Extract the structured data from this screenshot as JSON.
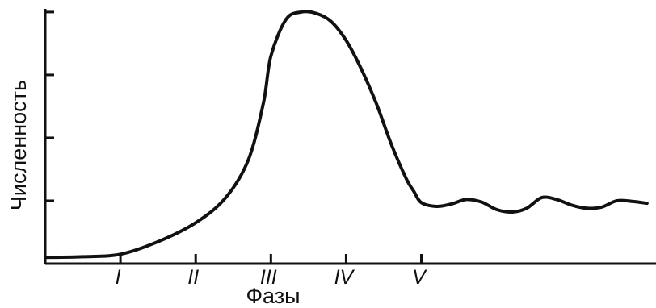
{
  "chart_data": {
    "type": "line",
    "title": "",
    "xlabel": "Фазы",
    "ylabel": "Численность",
    "x_tick_labels": [
      {
        "label": "I",
        "x": 1
      },
      {
        "label": "II",
        "x": 2
      },
      {
        "label": "III",
        "x": 3
      },
      {
        "label": "IV",
        "x": 4
      },
      {
        "label": "V",
        "x": 5
      }
    ],
    "y_ticks": [
      1,
      2,
      3,
      4
    ],
    "y_tick_labels_shown": false,
    "xlim": [
      0,
      8.12
    ],
    "ylim": [
      0,
      4.05
    ],
    "grid": false,
    "legend": "none",
    "series": [
      {
        "x": [
          0,
          0.5,
          1.0,
          1.5,
          2.0,
          2.4,
          2.7,
          2.9,
          3.0,
          3.2,
          3.4,
          3.6,
          3.8,
          4.0,
          4.2,
          4.4,
          4.6,
          4.8,
          4.9,
          5.0,
          5.2,
          5.4,
          5.6,
          5.8,
          6.0,
          6.2,
          6.4,
          6.6,
          6.8,
          7.0,
          7.2,
          7.4,
          7.6,
          7.8,
          8.0
        ],
        "values": [
          0.1,
          0.11,
          0.15,
          0.35,
          0.65,
          1.05,
          1.65,
          2.55,
          3.3,
          3.88,
          4.0,
          3.98,
          3.85,
          3.55,
          3.1,
          2.55,
          1.9,
          1.35,
          1.15,
          0.97,
          0.91,
          0.95,
          1.02,
          0.98,
          0.86,
          0.82,
          0.88,
          1.05,
          1.02,
          0.93,
          0.88,
          0.9,
          1.0,
          0.99,
          0.96
        ]
      }
    ]
  }
}
